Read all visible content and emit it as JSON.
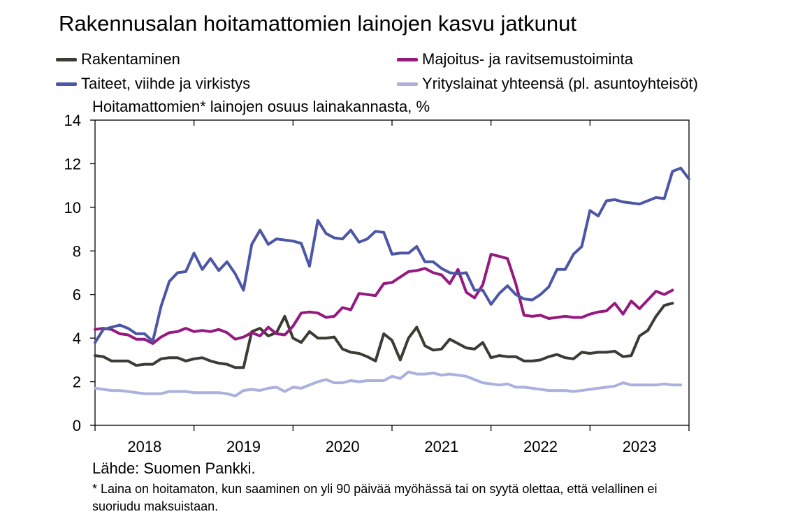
{
  "title": "Rakennusalan hoitamattomien lainojen kasvu jatkunut",
  "ylabel": "Hoitamattomien* lainojen osuus lainakannasta, %",
  "source": "Lähde: Suomen Pankki.",
  "footnote": "* Laina on hoitamaton, kun saaminen on yli 90 päivää myöhässä tai on syytä olettaa, että velallinen ei suoriudu maksuistaan.",
  "colors": {
    "rakentaminen": "#3a3d33",
    "majoitus": "#96197f",
    "taiteet": "#4c56a6",
    "yrityslainat": "#aab1dc"
  },
  "chart_data": {
    "type": "line",
    "title": "Rakennusalan hoitamattomien lainojen kasvu jatkunut",
    "ylabel": "Hoitamattomien* lainojen osuus lainakannasta, %",
    "xlabel": "",
    "ylim": [
      0,
      14
    ],
    "yticks": [
      "0",
      "2",
      "4",
      "6",
      "8",
      "10",
      "12",
      "14"
    ],
    "xticks": [
      "2018",
      "2019",
      "2020",
      "2021",
      "2022",
      "2023"
    ],
    "legend_position": "top",
    "grid": false,
    "start": "2018-01",
    "frequency": "monthly",
    "series": [
      {
        "name": "Rakentaminen",
        "color": "#3a3d33",
        "values": [
          3.2,
          3.15,
          2.95,
          2.95,
          2.95,
          2.75,
          2.8,
          2.8,
          3.05,
          3.1,
          3.1,
          2.95,
          3.05,
          3.1,
          2.95,
          2.85,
          2.8,
          2.65,
          2.65,
          4.3,
          4.45,
          4.1,
          4.25,
          5.0,
          4.0,
          3.8,
          4.3,
          4.0,
          4.0,
          4.05,
          3.5,
          3.35,
          3.3,
          3.15,
          2.95,
          4.2,
          3.9,
          3.0,
          4.0,
          4.5,
          3.65,
          3.45,
          3.5,
          3.95,
          3.75,
          3.55,
          3.5,
          3.8,
          3.1,
          3.2,
          3.15,
          3.15,
          2.95,
          2.95,
          3.0,
          3.15,
          3.25,
          3.1,
          3.05,
          3.35,
          3.3,
          3.35,
          3.35,
          3.4,
          3.15,
          3.2,
          4.1,
          4.35,
          5.0,
          5.5,
          5.6
        ]
      },
      {
        "name": "Majoitus- ja ravitsemustoiminta",
        "color": "#96197f",
        "values": [
          4.4,
          4.45,
          4.4,
          4.2,
          4.15,
          3.95,
          3.95,
          3.75,
          4.05,
          4.25,
          4.3,
          4.45,
          4.3,
          4.35,
          4.3,
          4.4,
          4.25,
          3.95,
          4.05,
          4.25,
          4.1,
          4.5,
          4.2,
          4.15,
          4.55,
          5.15,
          5.2,
          5.15,
          4.95,
          5.0,
          5.4,
          5.3,
          6.05,
          6.0,
          5.95,
          6.5,
          6.55,
          6.8,
          7.05,
          7.1,
          7.2,
          7.0,
          6.9,
          6.5,
          7.15,
          6.1,
          5.85,
          6.45,
          7.85,
          7.75,
          7.65,
          6.5,
          5.05,
          5.0,
          5.05,
          4.9,
          4.95,
          5.0,
          4.95,
          4.95,
          5.1,
          5.2,
          5.25,
          5.6,
          5.1,
          5.7,
          5.35,
          5.75,
          6.15,
          6.0,
          6.2
        ]
      },
      {
        "name": "Taiteet, viihde ja virkistys",
        "color": "#4c56a6",
        "values": [
          3.8,
          4.4,
          4.5,
          4.6,
          4.45,
          4.2,
          4.2,
          3.85,
          5.45,
          6.6,
          7.0,
          7.05,
          7.9,
          7.15,
          7.65,
          7.1,
          7.5,
          6.95,
          6.2,
          8.3,
          8.95,
          8.3,
          8.55,
          8.5,
          8.45,
          8.35,
          7.3,
          9.4,
          8.8,
          8.6,
          8.55,
          8.95,
          8.4,
          8.55,
          8.9,
          8.85,
          7.85,
          7.9,
          7.9,
          8.2,
          7.5,
          7.5,
          7.2,
          7.0,
          6.95,
          7.0,
          6.2,
          6.2,
          5.55,
          6.05,
          6.4,
          6.0,
          5.8,
          5.75,
          6.0,
          6.35,
          7.15,
          7.15,
          7.85,
          8.2,
          9.85,
          9.6,
          10.3,
          10.35,
          10.25,
          10.2,
          10.15,
          10.3,
          10.45,
          10.4,
          11.65,
          11.8,
          11.3
        ]
      },
      {
        "name": "Yrityslainat yhteensä (pl. asuntoyhteisöt)",
        "color": "#aab1dc",
        "values": [
          1.7,
          1.65,
          1.6,
          1.6,
          1.55,
          1.5,
          1.45,
          1.45,
          1.45,
          1.55,
          1.55,
          1.55,
          1.5,
          1.5,
          1.5,
          1.5,
          1.45,
          1.35,
          1.6,
          1.65,
          1.6,
          1.7,
          1.75,
          1.55,
          1.75,
          1.7,
          1.85,
          2.0,
          2.1,
          1.95,
          1.95,
          2.05,
          2.0,
          2.05,
          2.05,
          2.05,
          2.25,
          2.15,
          2.45,
          2.35,
          2.35,
          2.4,
          2.3,
          2.35,
          2.3,
          2.25,
          2.1,
          1.95,
          1.9,
          1.85,
          1.9,
          1.75,
          1.75,
          1.7,
          1.65,
          1.6,
          1.6,
          1.6,
          1.55,
          1.6,
          1.65,
          1.7,
          1.75,
          1.8,
          1.95,
          1.85,
          1.85,
          1.85,
          1.85,
          1.9,
          1.85,
          1.85
        ]
      }
    ]
  }
}
